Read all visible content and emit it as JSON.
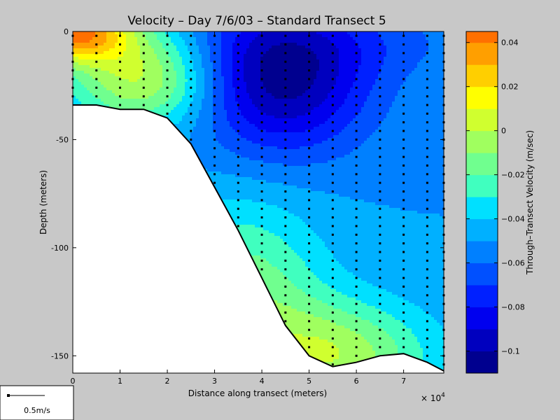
{
  "figure": {
    "background": "#c8c8c8"
  },
  "chart_data": {
    "type": "heatmap",
    "title": "Velocity – Day 7/6/03 – Standard Transect 5",
    "xlabel": "Distance along transect (meters)",
    "ylabel": "Depth (meters)",
    "x_multiplier_label": "× 10",
    "x_multiplier_exp": "4",
    "xlim": [
      0,
      78500
    ],
    "ylim": [
      -158,
      0
    ],
    "xticks": [
      0,
      10000,
      20000,
      30000,
      40000,
      50000,
      60000,
      70000
    ],
    "xtick_labels": [
      "0",
      "1",
      "2",
      "3",
      "4",
      "5",
      "6",
      "7"
    ],
    "yticks": [
      0,
      -50,
      -100,
      -150
    ],
    "ytick_labels": [
      "0",
      "-50",
      "-100",
      "-150"
    ],
    "colorbar": {
      "label": "Through–Transect Velocity (m/sec)",
      "range": [
        -0.11,
        0.045
      ],
      "step": 0.01,
      "ticks": [
        0.04,
        0.02,
        0,
        -0.02,
        -0.04,
        -0.06,
        -0.08,
        -0.1
      ],
      "tick_labels": [
        "0.04",
        "0.02",
        "0",
        "−0.02",
        "−0.04",
        "−0.06",
        "−0.08",
        "−0.1"
      ],
      "colors": [
        "#00008f",
        "#0000bf",
        "#0000ef",
        "#0020ff",
        "#0050ff",
        "#0080ff",
        "#00b0ff",
        "#00e0ff",
        "#40ffbf",
        "#70ff8f",
        "#a0ff5f",
        "#d0ff2f",
        "#ffff00",
        "#ffcf00",
        "#ff9f00",
        "#ff7000",
        "#ff4000",
        "#ff1000",
        "#df0000",
        "#af0000"
      ]
    },
    "bottom_profile": [
      [
        0,
        -34
      ],
      [
        5000,
        -34
      ],
      [
        10000,
        -36
      ],
      [
        15000,
        -36
      ],
      [
        20000,
        -40
      ],
      [
        25000,
        -52
      ],
      [
        30000,
        -72
      ],
      [
        35000,
        -92
      ],
      [
        40000,
        -114
      ],
      [
        45000,
        -136
      ],
      [
        50000,
        -150
      ],
      [
        55000,
        -155
      ],
      [
        60000,
        -153
      ],
      [
        65000,
        -150
      ],
      [
        70000,
        -149
      ],
      [
        75000,
        -153
      ],
      [
        78500,
        -157
      ]
    ],
    "stations_x": [
      0,
      5000,
      10000,
      15000,
      20000,
      25000,
      30000,
      35000,
      40000,
      45000,
      50000,
      55000,
      60000,
      65000,
      70000,
      75000,
      78500
    ],
    "sample_spacing_m": 4,
    "velocity_field_description": "surface jet positive near x=0; core minimum about -0.1 m/s near x=45000, depth -20",
    "velocity_field": {
      "background": -0.05,
      "features": [
        {
          "x": 0,
          "y": 0,
          "sx": 9000,
          "sy": 10,
          "amp": 0.088
        },
        {
          "x": 15000,
          "y": -22,
          "sx": 11000,
          "sy": 16,
          "amp": 0.052
        },
        {
          "x": 44000,
          "y": -22,
          "sx": 13000,
          "sy": 24,
          "amp": -0.055
        },
        {
          "x": 36000,
          "y": -120,
          "sx": 12000,
          "sy": 30,
          "amp": 0.035
        },
        {
          "x": 56000,
          "y": -150,
          "sx": 14000,
          "sy": 18,
          "amp": 0.045
        },
        {
          "x": 60000,
          "y": -5,
          "sx": 20000,
          "sy": 12,
          "amp": -0.01
        }
      ]
    }
  },
  "scale_legend": {
    "label": "0.5m/s"
  }
}
